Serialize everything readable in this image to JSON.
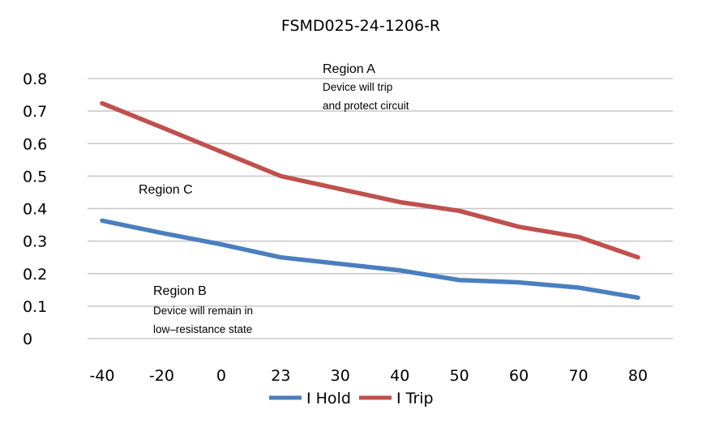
{
  "chart_data": {
    "type": "line",
    "title": "FSMD025-24-1206-R",
    "xlabel": "",
    "ylabel": "",
    "categories": [
      "-40",
      "-20",
      "0",
      "23",
      "30",
      "40",
      "50",
      "60",
      "70",
      "80"
    ],
    "ylim": [
      0,
      0.8
    ],
    "yticks": [
      "0",
      "0.1",
      "0.2",
      "0.3",
      "0.4",
      "0.5",
      "0.6",
      "0.7",
      "0.8"
    ],
    "grid": true,
    "legend_position": "bottom",
    "series": [
      {
        "name": "I Hold",
        "color": "#4a7ebf",
        "values": [
          0.363,
          0.325,
          0.29,
          0.25,
          0.23,
          0.21,
          0.18,
          0.173,
          0.157,
          0.126
        ]
      },
      {
        "name": "I Trip",
        "color": "#c0504d",
        "values": [
          0.724,
          0.65,
          0.575,
          0.5,
          0.46,
          0.42,
          0.393,
          0.344,
          0.313,
          0.25
        ]
      }
    ],
    "annotations": [
      {
        "title": "Region A",
        "lines": [
          "Device will trip",
          "and protect circuit"
        ]
      },
      {
        "title": "Region C",
        "lines": []
      },
      {
        "title": "Region B",
        "lines": [
          "Device will remain in",
          "low–resistance state"
        ]
      }
    ]
  }
}
